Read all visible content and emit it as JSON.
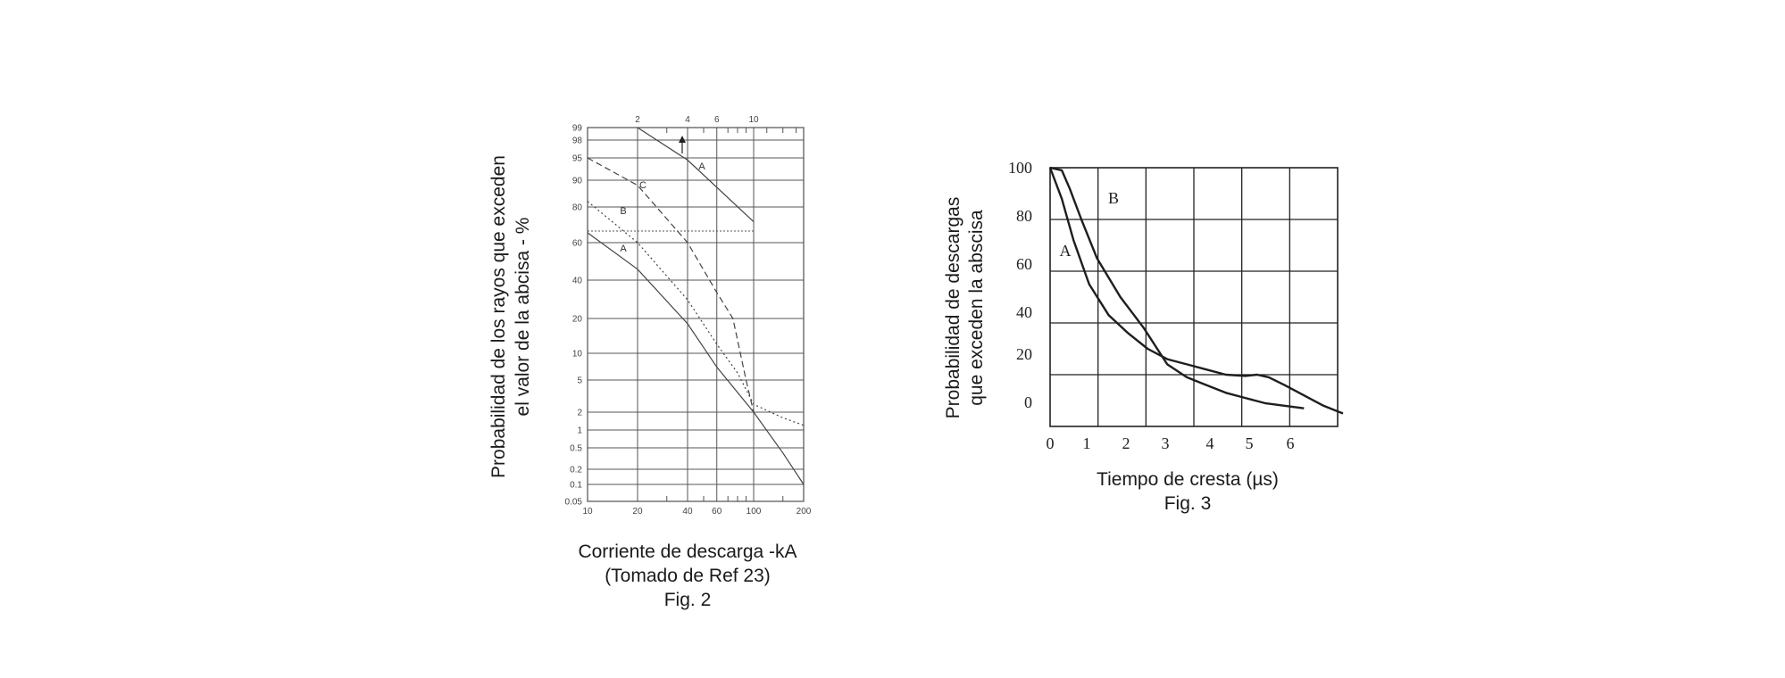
{
  "chart_data": [
    {
      "type": "line",
      "figure_label": "Fig. 2",
      "xlabel": "Corriente de descarga -kA",
      "note": "(Tomado de Ref 23)",
      "ylabel_lines": [
        "Probabilidad de los rayos que exceden",
        "el valor de la abcisa - %"
      ],
      "x_scale": "log",
      "xlim": [
        10,
        200
      ],
      "ylim": [
        0.05,
        99
      ],
      "x_ticks": [
        "10",
        "20",
        "40",
        "60",
        "100",
        "200"
      ],
      "x_top_ticks": [
        "2",
        "4",
        "6",
        "10"
      ],
      "y_ticks": [
        "99",
        "98",
        "95",
        "90",
        "80",
        "60",
        "40",
        "20",
        "10",
        "5",
        "2",
        "1",
        "0.5",
        "0.2",
        "0.1",
        "0.05"
      ],
      "series": [
        {
          "name": "A",
          "style": "solid",
          "points": [
            [
              10,
              65
            ],
            [
              20,
              45
            ],
            [
              40,
              18
            ],
            [
              60,
              7
            ],
            [
              100,
              2
            ],
            [
              150,
              0.4
            ],
            [
              200,
              0.1
            ]
          ]
        },
        {
          "name": "B",
          "style": "dotted",
          "points": [
            [
              10,
              82
            ],
            [
              20,
              60
            ],
            [
              40,
              28
            ],
            [
              60,
              12
            ],
            [
              80,
              6
            ],
            [
              100,
              2.5
            ],
            [
              150,
              1.6
            ],
            [
              200,
              1.2
            ]
          ]
        },
        {
          "name": "C",
          "style": "dashed",
          "points": [
            [
              10,
              95
            ],
            [
              20,
              88
            ],
            [
              40,
              60
            ],
            [
              60,
              32
            ],
            [
              75,
              20
            ],
            [
              90,
              5
            ],
            [
              100,
              2
            ]
          ]
        },
        {
          "name": "A",
          "style": "solid",
          "axis": "top",
          "points": [
            [
              2,
              99
            ],
            [
              4,
              94.5
            ],
            [
              10,
              71
            ]
          ]
        }
      ]
    },
    {
      "type": "line",
      "figure_label": "Fig. 3",
      "xlabel": "Tiempo de cresta (µs)",
      "ylabel_lines": [
        "Probabilidad de descargas",
        "que exceden la abscisa"
      ],
      "xlim": [
        0,
        7.5
      ],
      "x_ticks": [
        "0",
        "1",
        "2",
        "3",
        "4",
        "5",
        "6"
      ],
      "y_ticks": [
        "100",
        "80",
        "60",
        "40",
        "20",
        "0"
      ],
      "series": [
        {
          "name": "A",
          "points": [
            [
              0,
              100
            ],
            [
              0.3,
              88
            ],
            [
              0.6,
              72
            ],
            [
              1,
              55
            ],
            [
              1.5,
              43
            ],
            [
              2,
              36
            ],
            [
              2.5,
              30
            ],
            [
              3,
              26
            ],
            [
              3.5,
              24
            ],
            [
              4,
              22
            ],
            [
              4.5,
              20
            ],
            [
              5,
              19.5
            ],
            [
              5.3,
              20
            ],
            [
              5.6,
              19
            ],
            [
              6,
              16
            ],
            [
              6.5,
              12
            ],
            [
              7,
              8
            ],
            [
              7.5,
              5
            ]
          ]
        },
        {
          "name": "B",
          "points": [
            [
              0,
              100
            ],
            [
              0.3,
              99
            ],
            [
              0.5,
              92
            ],
            [
              0.8,
              80
            ],
            [
              1.2,
              65
            ],
            [
              1.8,
              50
            ],
            [
              2.4,
              38
            ],
            [
              3,
              24
            ],
            [
              3.5,
              19
            ],
            [
              4,
              16
            ],
            [
              4.5,
              13
            ],
            [
              5,
              11
            ],
            [
              5.5,
              9
            ],
            [
              6,
              8
            ],
            [
              6.5,
              7
            ]
          ]
        }
      ],
      "curve_labels": {
        "A": "A",
        "B": "B"
      }
    }
  ]
}
